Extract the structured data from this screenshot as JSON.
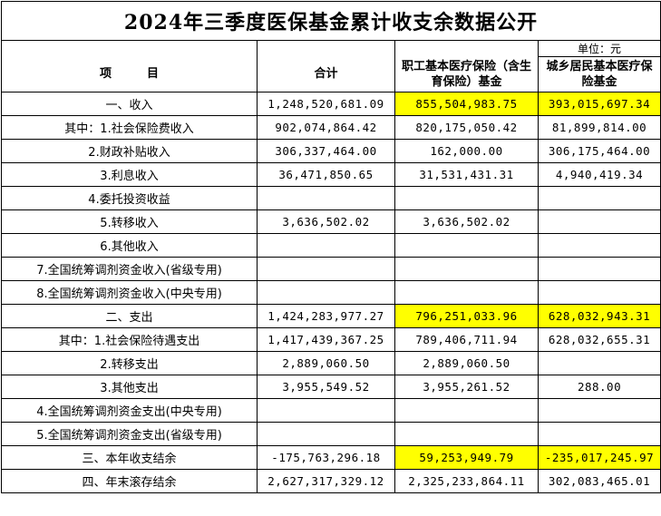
{
  "title": "2024年三季度医保基金累计收支余数据公开",
  "unit": "单位：元",
  "headers": {
    "item": "项　　　目",
    "total": "合计",
    "employee": "职工基本医疗保险（含生育保险）基金",
    "resident": "城乡居民基本医疗保险基金"
  },
  "rows": [
    {
      "label": "一、收入",
      "total": "1,248,520,681.09",
      "employee": "855,504,983.75",
      "resident": "393,015,697.34"
    },
    {
      "label": "其中：1.社会保险费收入",
      "total": "902,074,864.42",
      "employee": "820,175,050.42",
      "resident": "81,899,814.00"
    },
    {
      "label": "2.财政补贴收入",
      "total": "306,337,464.00",
      "employee": "162,000.00",
      "resident": "306,175,464.00"
    },
    {
      "label": "3.利息收入",
      "total": "36,471,850.65",
      "employee": "31,531,431.31",
      "resident": "4,940,419.34"
    },
    {
      "label": "4.委托投资收益",
      "total": "",
      "employee": "",
      "resident": ""
    },
    {
      "label": "5.转移收入",
      "total": "3,636,502.02",
      "employee": "3,636,502.02",
      "resident": ""
    },
    {
      "label": "6.其他收入",
      "total": "",
      "employee": "",
      "resident": ""
    },
    {
      "label": "7.全国统筹调剂资金收入(省级专用)",
      "total": "",
      "employee": "",
      "resident": ""
    },
    {
      "label": "8.全国统筹调剂资金收入(中央专用)",
      "total": "",
      "employee": "",
      "resident": ""
    },
    {
      "label": "二、支出",
      "total": "1,424,283,977.27",
      "employee": "796,251,033.96",
      "resident": "628,032,943.31"
    },
    {
      "label": "其中：1.社会保险待遇支出",
      "total": "1,417,439,367.25",
      "employee": "789,406,711.94",
      "resident": "628,032,655.31"
    },
    {
      "label": "2.转移支出",
      "total": "2,889,060.50",
      "employee": "2,889,060.50",
      "resident": ""
    },
    {
      "label": "3.其他支出",
      "total": "3,955,549.52",
      "employee": "3,955,261.52",
      "resident": "288.00"
    },
    {
      "label": "4.全国统筹调剂资金支出(中央专用)",
      "total": "",
      "employee": "",
      "resident": ""
    },
    {
      "label": "5.全国统筹调剂资金支出(省级专用)",
      "total": "",
      "employee": "",
      "resident": ""
    },
    {
      "label": "三、本年收支结余",
      "total": "-175,763,296.18",
      "employee": "59,253,949.79",
      "resident": "-235,017,245.97"
    },
    {
      "label": "四、年末滚存结余",
      "total": "2,627,317,329.12",
      "employee": "2,325,233,864.11",
      "resident": "302,083,465.01"
    }
  ],
  "highlight_color": "#ffff00"
}
